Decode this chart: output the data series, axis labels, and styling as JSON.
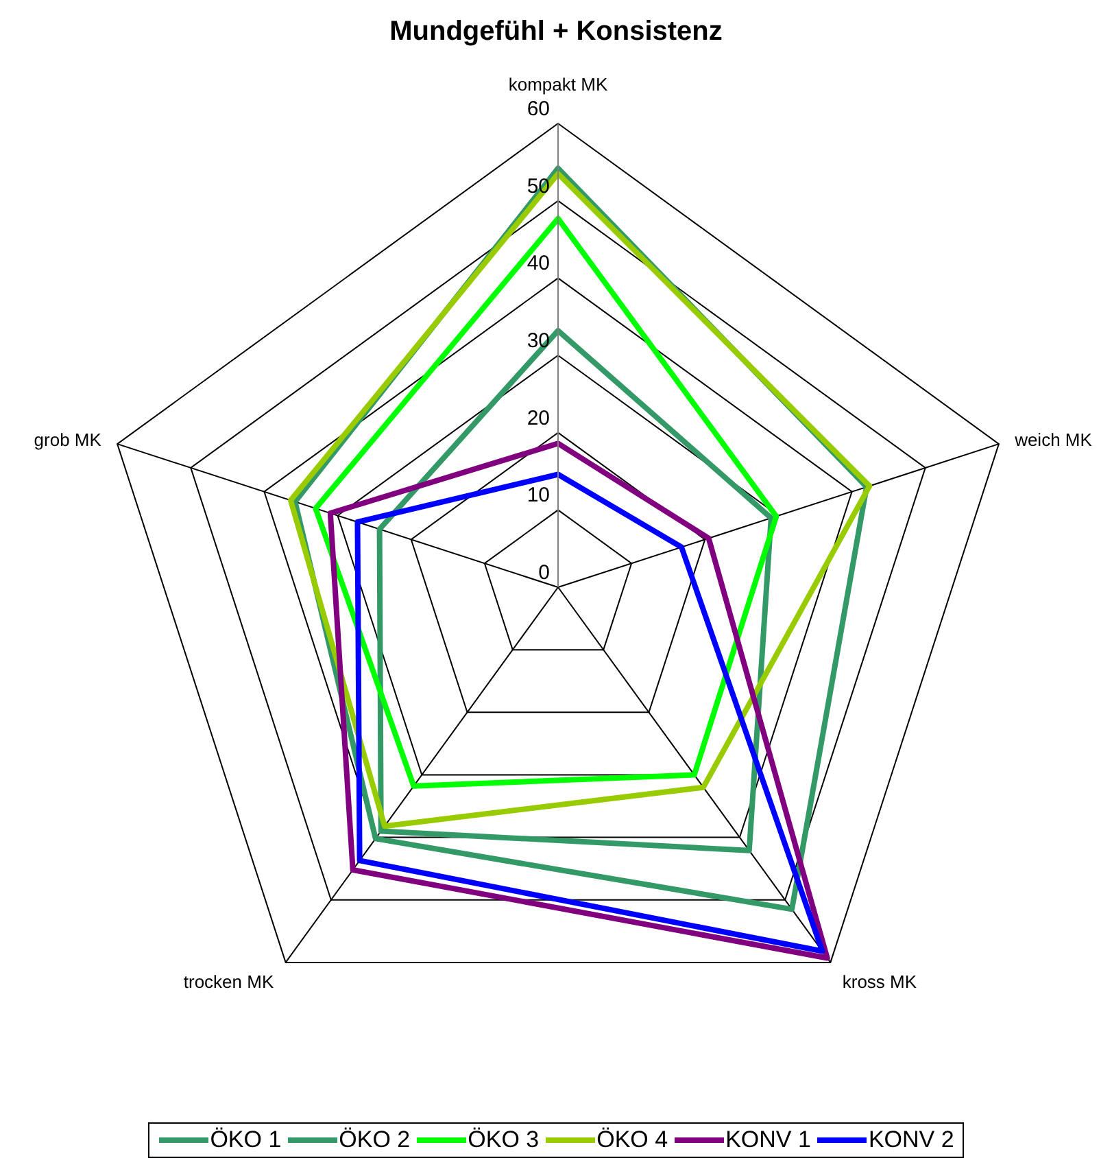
{
  "chart_data": {
    "type": "radar",
    "title": "Mundgefühl + Konsistenz",
    "categories": [
      "kompakt MK",
      "weich MK",
      "kross MK",
      "trocken MK",
      "grob MK"
    ],
    "series": [
      {
        "name": "ÖKO 1",
        "color": "#339966",
        "values": [
          54.2,
          42,
          51.5,
          40.2,
          35.8
        ]
      },
      {
        "name": "ÖKO 2",
        "color": "#339966",
        "values": [
          33.2,
          29,
          42.1,
          39,
          24.3
        ]
      },
      {
        "name": "ÖKO 3",
        "color": "#00ff00",
        "values": [
          47.7,
          29.7,
          30,
          31.8,
          33
        ]
      },
      {
        "name": "ÖKO 4",
        "color": "#99cc00",
        "values": [
          53.5,
          42.4,
          32,
          38.2,
          36.4
        ]
      },
      {
        "name": "KONV 1",
        "color": "#800080",
        "values": [
          18.6,
          20.5,
          59.3,
          45.2,
          31
        ]
      },
      {
        "name": "KONV 2",
        "color": "#0000ff",
        "values": [
          14.6,
          16.8,
          58.2,
          43.7,
          27.3
        ]
      }
    ],
    "ylim": [
      0,
      60
    ],
    "yticks": [
      0,
      10,
      20,
      30,
      40,
      50,
      60
    ],
    "grid": true,
    "legend": "bottom",
    "marker": "none",
    "line_style": "solid"
  }
}
